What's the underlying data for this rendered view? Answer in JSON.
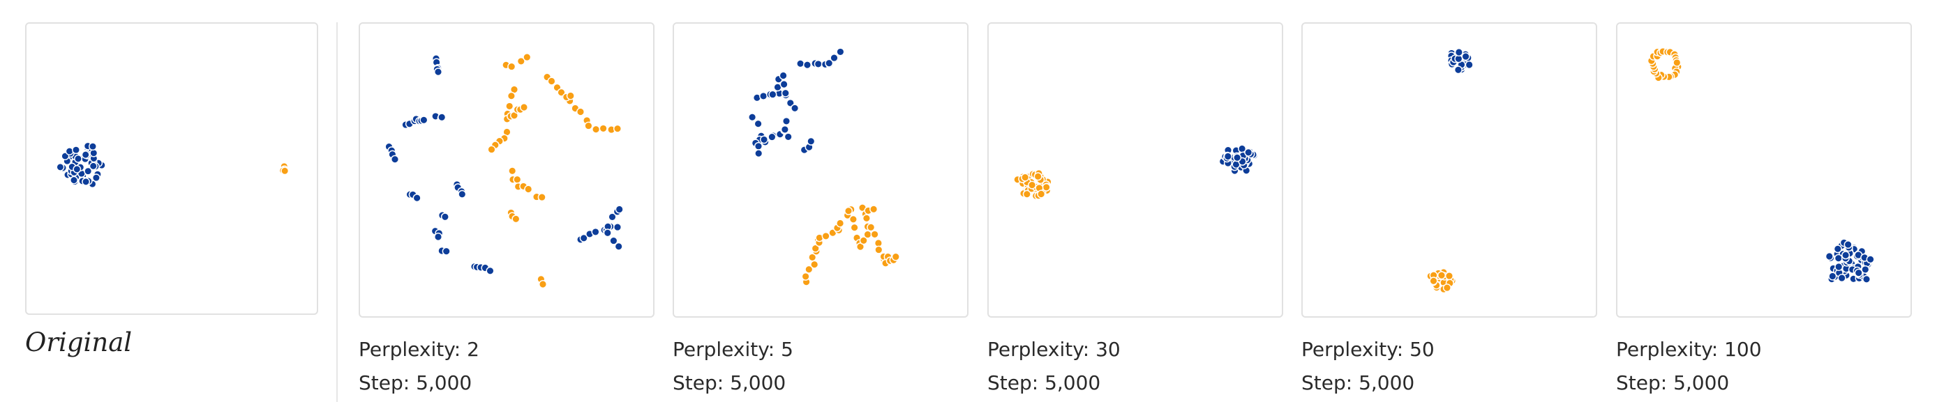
{
  "original": {
    "label": "Original"
  },
  "colors": {
    "blue": "#0d3d99",
    "orange": "#f99f14",
    "panel_border": "#e1e1e1",
    "divider": "#e6e6e6"
  },
  "chart_data": [
    {
      "type": "scatter",
      "caption": "Original",
      "clusters": [
        {
          "color": "blue",
          "shape": "blob",
          "cx": 0.19,
          "cy": 0.49,
          "r": 0.085,
          "n": 55
        },
        {
          "color": "orange",
          "shape": "blob",
          "cx": 0.89,
          "cy": 0.5,
          "r": 0.012,
          "n": 6
        }
      ]
    },
    {
      "type": "scatter",
      "perplexity_label": "Perplexity: 2",
      "step_label": "Step: 5,000",
      "clusters": [
        {
          "color": "blue",
          "shape": "line",
          "x1": 0.26,
          "y1": 0.12,
          "x2": 0.27,
          "y2": 0.17,
          "n": 5
        },
        {
          "color": "blue",
          "shape": "line",
          "x1": 0.16,
          "y1": 0.34,
          "x2": 0.22,
          "y2": 0.33,
          "n": 7
        },
        {
          "color": "blue",
          "shape": "line",
          "x1": 0.26,
          "y1": 0.32,
          "x2": 0.28,
          "y2": 0.32,
          "n": 3
        },
        {
          "color": "blue",
          "shape": "line",
          "x1": 0.1,
          "y1": 0.42,
          "x2": 0.12,
          "y2": 0.46,
          "n": 4
        },
        {
          "color": "blue",
          "shape": "line",
          "x1": 0.17,
          "y1": 0.58,
          "x2": 0.19,
          "y2": 0.6,
          "n": 3
        },
        {
          "color": "blue",
          "shape": "line",
          "x1": 0.33,
          "y1": 0.55,
          "x2": 0.35,
          "y2": 0.59,
          "n": 4
        },
        {
          "color": "blue",
          "shape": "line",
          "x1": 0.28,
          "y1": 0.65,
          "x2": 0.29,
          "y2": 0.66,
          "n": 2
        },
        {
          "color": "blue",
          "shape": "line",
          "x1": 0.26,
          "y1": 0.71,
          "x2": 0.27,
          "y2": 0.73,
          "n": 3
        },
        {
          "color": "blue",
          "shape": "line",
          "x1": 0.28,
          "y1": 0.77,
          "x2": 0.29,
          "y2": 0.78,
          "n": 2
        },
        {
          "color": "blue",
          "shape": "line",
          "x1": 0.38,
          "y1": 0.83,
          "x2": 0.44,
          "y2": 0.84,
          "n": 5
        },
        {
          "color": "blue",
          "shape": "line",
          "x1": 0.75,
          "y1": 0.73,
          "x2": 0.88,
          "y2": 0.69,
          "n": 8
        },
        {
          "color": "blue",
          "shape": "line",
          "x1": 0.84,
          "y1": 0.69,
          "x2": 0.88,
          "y2": 0.76,
          "n": 4
        },
        {
          "color": "blue",
          "shape": "line",
          "x1": 0.86,
          "y1": 0.66,
          "x2": 0.89,
          "y2": 0.63,
          "n": 3
        },
        {
          "color": "orange",
          "shape": "line",
          "x1": 0.49,
          "y1": 0.15,
          "x2": 0.57,
          "y2": 0.12,
          "n": 4
        },
        {
          "color": "orange",
          "shape": "line",
          "x1": 0.53,
          "y1": 0.23,
          "x2": 0.5,
          "y2": 0.31,
          "n": 4
        },
        {
          "color": "orange",
          "shape": "line",
          "x1": 0.5,
          "y1": 0.33,
          "x2": 0.56,
          "y2": 0.28,
          "n": 6
        },
        {
          "color": "orange",
          "shape": "line",
          "x1": 0.5,
          "y1": 0.37,
          "x2": 0.45,
          "y2": 0.43,
          "n": 5
        },
        {
          "color": "orange",
          "shape": "line",
          "x1": 0.52,
          "y1": 0.51,
          "x2": 0.55,
          "y2": 0.56,
          "n": 5
        },
        {
          "color": "orange",
          "shape": "line",
          "x1": 0.58,
          "y1": 0.57,
          "x2": 0.63,
          "y2": 0.6,
          "n": 3
        },
        {
          "color": "orange",
          "shape": "line",
          "x1": 0.51,
          "y1": 0.65,
          "x2": 0.53,
          "y2": 0.67,
          "n": 3
        },
        {
          "color": "orange",
          "shape": "line",
          "x1": 0.64,
          "y1": 0.18,
          "x2": 0.77,
          "y2": 0.33,
          "n": 8
        },
        {
          "color": "orange",
          "shape": "line",
          "x1": 0.78,
          "y1": 0.35,
          "x2": 0.88,
          "y2": 0.36,
          "n": 5
        },
        {
          "color": "orange",
          "shape": "line",
          "x1": 0.69,
          "y1": 0.24,
          "x2": 0.72,
          "y2": 0.25,
          "n": 3
        },
        {
          "color": "orange",
          "shape": "line",
          "x1": 0.62,
          "y1": 0.87,
          "x2": 0.63,
          "y2": 0.89,
          "n": 2
        }
      ]
    },
    {
      "type": "scatter",
      "perplexity_label": "Perplexity: 5",
      "step_label": "Step: 5,000",
      "clusters": [
        {
          "color": "blue",
          "shape": "line",
          "x1": 0.43,
          "y1": 0.14,
          "x2": 0.53,
          "y2": 0.14,
          "n": 6
        },
        {
          "color": "blue",
          "shape": "line",
          "x1": 0.53,
          "y1": 0.14,
          "x2": 0.56,
          "y2": 0.1,
          "n": 3
        },
        {
          "color": "blue",
          "shape": "line",
          "x1": 0.28,
          "y1": 0.25,
          "x2": 0.38,
          "y2": 0.24,
          "n": 5
        },
        {
          "color": "blue",
          "shape": "line",
          "x1": 0.34,
          "y1": 0.24,
          "x2": 0.37,
          "y2": 0.17,
          "n": 4
        },
        {
          "color": "blue",
          "shape": "line",
          "x1": 0.37,
          "y1": 0.21,
          "x2": 0.41,
          "y2": 0.29,
          "n": 4
        },
        {
          "color": "blue",
          "shape": "line",
          "x1": 0.27,
          "y1": 0.32,
          "x2": 0.31,
          "y2": 0.4,
          "n": 4
        },
        {
          "color": "blue",
          "shape": "line",
          "x1": 0.29,
          "y1": 0.4,
          "x2": 0.38,
          "y2": 0.37,
          "n": 6
        },
        {
          "color": "blue",
          "shape": "line",
          "x1": 0.38,
          "y1": 0.34,
          "x2": 0.39,
          "y2": 0.39,
          "n": 3
        },
        {
          "color": "blue",
          "shape": "line",
          "x1": 0.28,
          "y1": 0.41,
          "x2": 0.29,
          "y2": 0.44,
          "n": 3
        },
        {
          "color": "blue",
          "shape": "line",
          "x1": 0.44,
          "y1": 0.43,
          "x2": 0.47,
          "y2": 0.41,
          "n": 3
        },
        {
          "color": "orange",
          "shape": "line",
          "x1": 0.45,
          "y1": 0.88,
          "x2": 0.5,
          "y2": 0.74,
          "n": 8
        },
        {
          "color": "orange",
          "shape": "line",
          "x1": 0.48,
          "y1": 0.74,
          "x2": 0.56,
          "y2": 0.7,
          "n": 5
        },
        {
          "color": "orange",
          "shape": "line",
          "x1": 0.56,
          "y1": 0.7,
          "x2": 0.6,
          "y2": 0.64,
          "n": 4
        },
        {
          "color": "orange",
          "shape": "line",
          "x1": 0.6,
          "y1": 0.64,
          "x2": 0.63,
          "y2": 0.76,
          "n": 5
        },
        {
          "color": "orange",
          "shape": "line",
          "x1": 0.63,
          "y1": 0.76,
          "x2": 0.66,
          "y2": 0.72,
          "n": 3
        },
        {
          "color": "orange",
          "shape": "line",
          "x1": 0.66,
          "y1": 0.67,
          "x2": 0.71,
          "y2": 0.8,
          "n": 6
        },
        {
          "color": "orange",
          "shape": "line",
          "x1": 0.71,
          "y1": 0.8,
          "x2": 0.73,
          "y2": 0.8,
          "n": 2
        },
        {
          "color": "orange",
          "shape": "line",
          "x1": 0.72,
          "y1": 0.82,
          "x2": 0.76,
          "y2": 0.79,
          "n": 4
        },
        {
          "color": "orange",
          "shape": "line",
          "x1": 0.64,
          "y1": 0.63,
          "x2": 0.68,
          "y2": 0.69,
          "n": 4
        },
        {
          "color": "orange",
          "shape": "line",
          "x1": 0.67,
          "y1": 0.64,
          "x2": 0.68,
          "y2": 0.64,
          "n": 2
        }
      ]
    },
    {
      "type": "scatter",
      "perplexity_label": "Perplexity: 30",
      "step_label": "Step: 5,000",
      "clusters": [
        {
          "color": "orange",
          "shape": "blob",
          "cx": 0.15,
          "cy": 0.55,
          "r": 0.055,
          "n": 45
        },
        {
          "color": "blue",
          "shape": "blob",
          "cx": 0.85,
          "cy": 0.46,
          "r": 0.055,
          "n": 45
        }
      ]
    },
    {
      "type": "scatter",
      "perplexity_label": "Perplexity: 50",
      "step_label": "Step: 5,000",
      "clusters": [
        {
          "color": "blue",
          "shape": "blob",
          "cx": 0.53,
          "cy": 0.13,
          "r": 0.04,
          "n": 35
        },
        {
          "color": "orange",
          "shape": "blob",
          "cx": 0.47,
          "cy": 0.88,
          "r": 0.04,
          "n": 35
        }
      ]
    },
    {
      "type": "scatter",
      "perplexity_label": "Perplexity: 100",
      "step_label": "Step: 5,000",
      "clusters": [
        {
          "color": "orange",
          "shape": "ring",
          "cx": 0.16,
          "cy": 0.14,
          "r": 0.045,
          "n": 26
        },
        {
          "color": "blue",
          "shape": "blob",
          "cx": 0.79,
          "cy": 0.82,
          "r": 0.085,
          "n": 60
        }
      ]
    }
  ]
}
